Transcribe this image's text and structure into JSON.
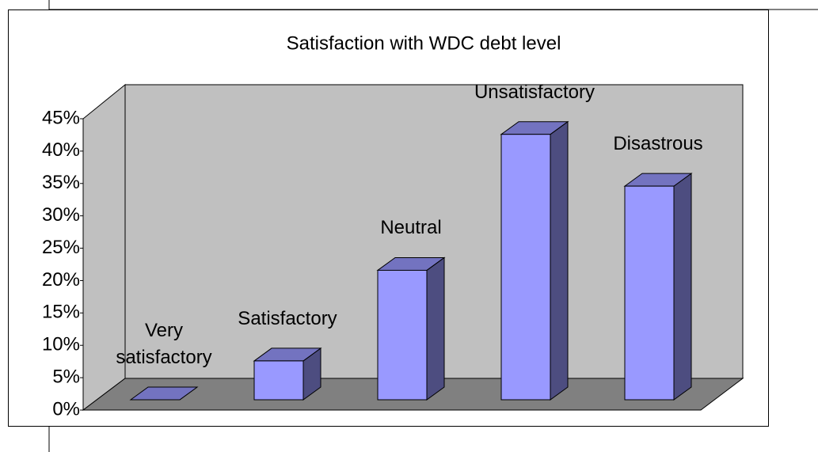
{
  "chart_data": {
    "type": "bar3d",
    "title": "Satisfaction with WDC debt level",
    "categories": [
      "Very satisfactory",
      "Satisfactory",
      "Neutral",
      "Unsatisfactory",
      "Disastrous"
    ],
    "values": [
      0,
      6,
      20,
      41,
      33
    ],
    "color": "#9999ff",
    "ylim": [
      0,
      45
    ],
    "yticks": [
      {
        "value": 0,
        "label": "0%"
      },
      {
        "value": 5,
        "label": "5%"
      },
      {
        "value": 10,
        "label": "10%"
      },
      {
        "value": 15,
        "label": "15%"
      },
      {
        "value": 20,
        "label": "20%"
      },
      {
        "value": 25,
        "label": "25%"
      },
      {
        "value": 30,
        "label": "30%"
      },
      {
        "value": 35,
        "label": "35%"
      },
      {
        "value": 40,
        "label": "40%"
      },
      {
        "value": 45,
        "label": "45%"
      }
    ]
  }
}
